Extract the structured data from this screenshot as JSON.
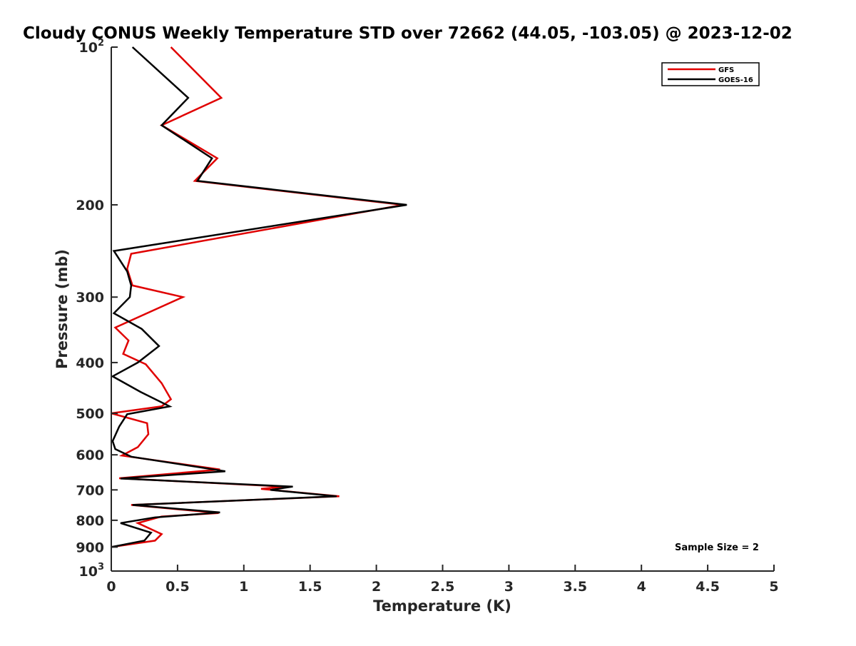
{
  "chart_data": {
    "type": "line",
    "title": "Cloudy CONUS Weekly Temperature STD over 72662 (44.05, -103.05) @ 2023-12-02",
    "xlabel": "Temperature (K)",
    "ylabel": "Pressure (mb)",
    "xlim": [
      0,
      5
    ],
    "ylim": [
      100,
      1000
    ],
    "y_scale": "log",
    "y_reversed": true,
    "xticks": [
      0,
      0.5,
      1,
      1.5,
      2,
      2.5,
      3,
      3.5,
      4,
      4.5,
      5
    ],
    "xtick_labels": [
      "0",
      "0.5",
      "1",
      "1.5",
      "2",
      "2.5",
      "3",
      "3.5",
      "4",
      "4.5",
      "5"
    ],
    "yticks": [
      100,
      200,
      300,
      400,
      500,
      600,
      700,
      800,
      900,
      1000
    ],
    "ytick_labels": [
      {
        "base": "10",
        "exp": "2"
      },
      {
        "base": "200",
        "exp": ""
      },
      {
        "base": "300",
        "exp": ""
      },
      {
        "base": "400",
        "exp": ""
      },
      {
        "base": "500",
        "exp": ""
      },
      {
        "base": "600",
        "exp": ""
      },
      {
        "base": "700",
        "exp": ""
      },
      {
        "base": "800",
        "exp": ""
      },
      {
        "base": "900",
        "exp": ""
      },
      {
        "base": "10",
        "exp": "3"
      }
    ],
    "grid": false,
    "legend_position": "top-right",
    "annotation": "Sample Size = 2",
    "series": [
      {
        "name": "GFS",
        "color": "#e00000",
        "points": [
          [
            0.45,
            100
          ],
          [
            0.83,
            125
          ],
          [
            0.38,
            141
          ],
          [
            0.8,
            163
          ],
          [
            0.63,
            180
          ],
          [
            2.2,
            200
          ],
          [
            0.15,
            248
          ],
          [
            0.12,
            265
          ],
          [
            0.16,
            285
          ],
          [
            0.54,
            300
          ],
          [
            0.03,
            343
          ],
          [
            0.13,
            363
          ],
          [
            0.09,
            385
          ],
          [
            0.26,
            403
          ],
          [
            0.38,
            438
          ],
          [
            0.45,
            470
          ],
          [
            0.38,
            485
          ],
          [
            0.0,
            500
          ],
          [
            0.27,
            522
          ],
          [
            0.28,
            548
          ],
          [
            0.2,
            580
          ],
          [
            0.08,
            602
          ],
          [
            0.82,
            640
          ],
          [
            0.06,
            665
          ],
          [
            1.3,
            690
          ],
          [
            1.13,
            697
          ],
          [
            1.72,
            720
          ],
          [
            0.15,
            748
          ],
          [
            0.81,
            775
          ],
          [
            0.38,
            787
          ],
          [
            0.2,
            810
          ],
          [
            0.38,
            850
          ],
          [
            0.33,
            875
          ],
          [
            0.0,
            900
          ]
        ]
      },
      {
        "name": "GOES-16",
        "color": "#000000",
        "points": [
          [
            0.16,
            100
          ],
          [
            0.58,
            125
          ],
          [
            0.38,
            141
          ],
          [
            0.76,
            163
          ],
          [
            0.65,
            180
          ],
          [
            2.23,
            200
          ],
          [
            0.02,
            245
          ],
          [
            0.12,
            268
          ],
          [
            0.15,
            285
          ],
          [
            0.14,
            300
          ],
          [
            0.02,
            322
          ],
          [
            0.23,
            345
          ],
          [
            0.36,
            372
          ],
          [
            0.2,
            400
          ],
          [
            0.01,
            425
          ],
          [
            0.22,
            455
          ],
          [
            0.44,
            485
          ],
          [
            0.12,
            502
          ],
          [
            0.06,
            530
          ],
          [
            0.01,
            565
          ],
          [
            0.03,
            585
          ],
          [
            0.15,
            605
          ],
          [
            0.86,
            645
          ],
          [
            0.07,
            666
          ],
          [
            1.37,
            690
          ],
          [
            1.2,
            700
          ],
          [
            1.7,
            720
          ],
          [
            0.16,
            748
          ],
          [
            0.82,
            773
          ],
          [
            0.33,
            790
          ],
          [
            0.07,
            810
          ],
          [
            0.3,
            845
          ],
          [
            0.25,
            875
          ],
          [
            0.0,
            900
          ]
        ]
      }
    ]
  }
}
